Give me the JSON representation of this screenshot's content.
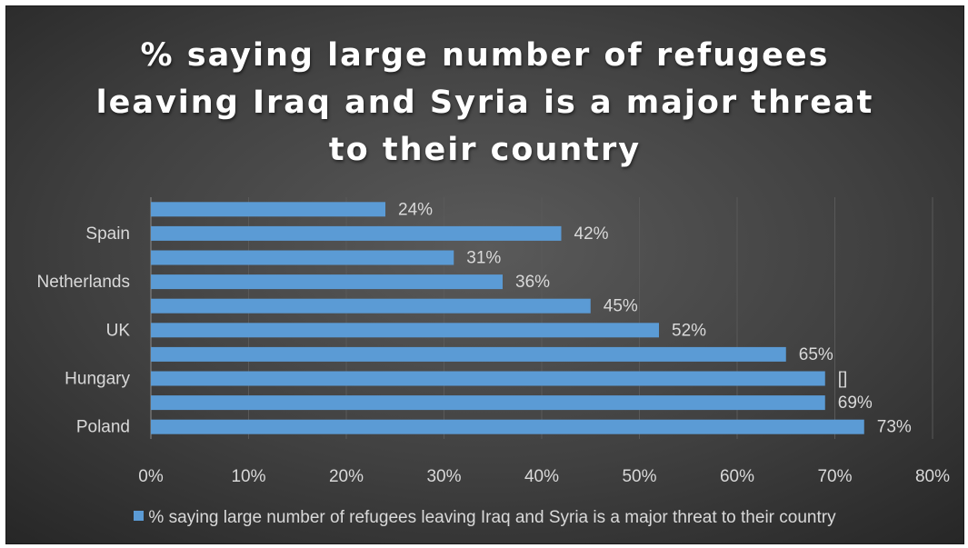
{
  "colors": {
    "bar": "#5b9bd5",
    "background": "#404040",
    "text": "#d9d9d9",
    "gridline": "#595959"
  },
  "chart_data": {
    "type": "bar",
    "orientation": "horizontal",
    "title": "% saying large number of refugees leaving Iraq and Syria is a major threat to their country",
    "title_lines": [
      "% saying large number of refugees",
      "leaving Iraq and Syria is a major threat",
      "to their country"
    ],
    "categories": [
      "",
      "Spain",
      "",
      "Netherlands",
      "",
      "UK",
      "",
      "Hungary",
      "",
      "Poland"
    ],
    "values": [
      24,
      42,
      31,
      36,
      45,
      52,
      65,
      69,
      69,
      73
    ],
    "data_labels": [
      "24%",
      "42%",
      "31%",
      "36%",
      "45%",
      "52%",
      "65%",
      "[]",
      "69%",
      "73%"
    ],
    "series": [
      {
        "name": "% saying large number of refugees leaving Iraq and Syria is a major threat to their country",
        "values": [
          24,
          42,
          31,
          36,
          45,
          52,
          65,
          69,
          69,
          73
        ]
      }
    ],
    "xlim": [
      0,
      80
    ],
    "x_ticks": [
      "0%",
      "10%",
      "20%",
      "30%",
      "40%",
      "50%",
      "60%",
      "70%",
      "80%"
    ],
    "grid": true,
    "legend": "bottom"
  }
}
